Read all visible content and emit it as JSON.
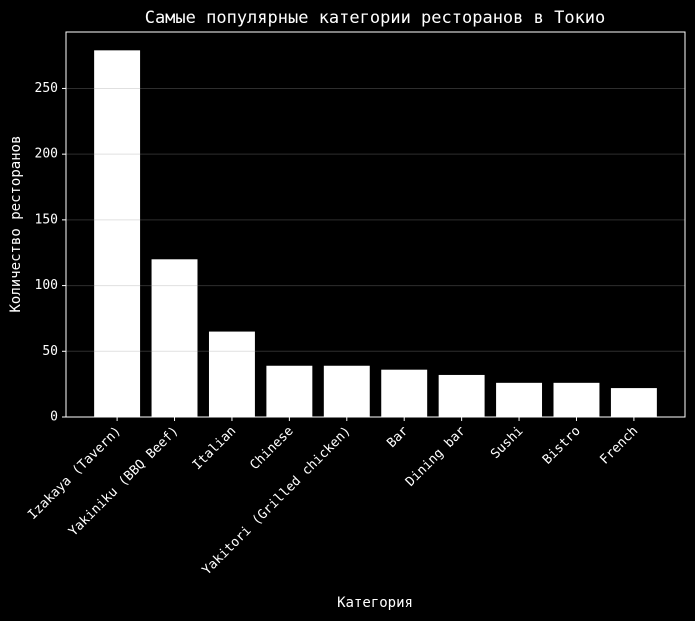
{
  "chart_data": {
    "type": "bar",
    "title": "Самые популярные категории ресторанов в Токио",
    "x_label": "Категория",
    "y_label": "Количество ресторанов",
    "categories": [
      "Izakaya (Tavern)",
      "Yakiniku (BBQ Beef)",
      "Italian",
      "Chinese",
      "Yakitori (Grilled chicken)",
      "Bar",
      "Dining bar",
      "Sushi",
      "Bistro",
      "French"
    ],
    "values": [
      279,
      120,
      65,
      39,
      39,
      36,
      32,
      26,
      26,
      22
    ],
    "color": "#ffffff",
    "ylim": [
      0,
      292.95
    ],
    "yticks": [
      0,
      50,
      100,
      150,
      200,
      250
    ],
    "grid": true
  }
}
